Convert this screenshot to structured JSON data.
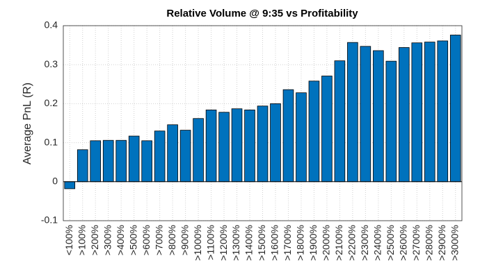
{
  "chart_data": {
    "type": "bar",
    "title": "Relative Volume @ 9:35 vs Profitability",
    "y_label": "Average PnL (R)",
    "categories": [
      "<100%",
      ">100%",
      ">200%",
      ">300%",
      ">400%",
      ">500%",
      ">600%",
      ">700%",
      ">800%",
      ">900%",
      ">1000%",
      ">1100%",
      ">1200%",
      ">1300%",
      ">1400%",
      ">1500%",
      ">1600%",
      ">1700%",
      ">1800%",
      ">1900%",
      ">2000%",
      ">2100%",
      ">2200%",
      ">2300%",
      ">2400%",
      ">2500%",
      ">2600%",
      ">2700%",
      ">2800%",
      ">2900%",
      ">3000%"
    ],
    "values": [
      -0.018,
      0.082,
      0.105,
      0.106,
      0.106,
      0.117,
      0.105,
      0.13,
      0.146,
      0.132,
      0.162,
      0.184,
      0.178,
      0.187,
      0.184,
      0.194,
      0.2,
      0.236,
      0.228,
      0.258,
      0.271,
      0.31,
      0.357,
      0.347,
      0.336,
      0.309,
      0.344,
      0.356,
      0.358,
      0.361,
      0.376
    ],
    "color": "#0072bd",
    "ylim": [
      -0.1,
      0.4
    ],
    "yticks": [
      -0.1,
      0,
      0.1,
      0.2,
      0.3,
      0.4
    ],
    "grid": true
  }
}
